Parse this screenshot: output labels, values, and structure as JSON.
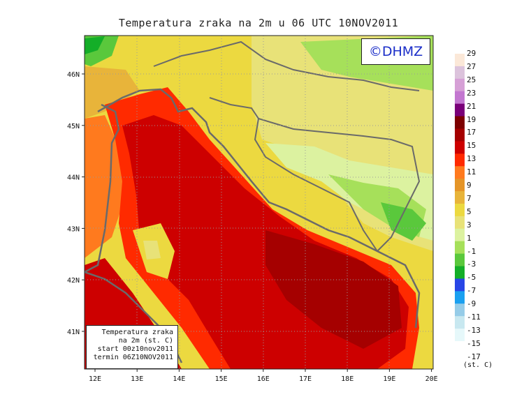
{
  "title": "Temperatura zraka na 2m u 06 UTC 10NOV2011",
  "copyright": "©DHMZ",
  "info_box": {
    "line1": "Temperatura zraka",
    "line2": "na 2m (st. C)",
    "line3": "start 00z10nov2011",
    "line4": "termin 06Z10NOV2011"
  },
  "lon_ticks": [
    "12E",
    "13E",
    "14E",
    "15E",
    "16E",
    "17E",
    "18E",
    "19E",
    "20E"
  ],
  "lat_ticks": [
    "46N",
    "45N",
    "44N",
    "43N",
    "42N",
    "41N"
  ],
  "colorbar": {
    "labels": [
      "29",
      "27",
      "25",
      "23",
      "21",
      "19",
      "17",
      "15",
      "13",
      "11",
      "9",
      "7",
      "5",
      "3",
      "1",
      "-1",
      "-3",
      "-5",
      "-7",
      "-9",
      "-11",
      "-13",
      "-15",
      "-17"
    ],
    "colors": [
      "#fbe8d8",
      "#dcc3dc",
      "#d6a0d6",
      "#c377d0",
      "#7a0079",
      "#7d0000",
      "#a50000",
      "#cd0000",
      "#ff2a00",
      "#ff7a1e",
      "#e59528",
      "#e8b43a",
      "#ecd940",
      "#e8e278",
      "#dcf2a0",
      "#a6e05a",
      "#5ac83c",
      "#14ae28",
      "#2846e6",
      "#1aa0f0",
      "#96cce8",
      "#c8e8f0",
      "#e6f8fa"
    ],
    "unit": "(st. C)"
  }
}
